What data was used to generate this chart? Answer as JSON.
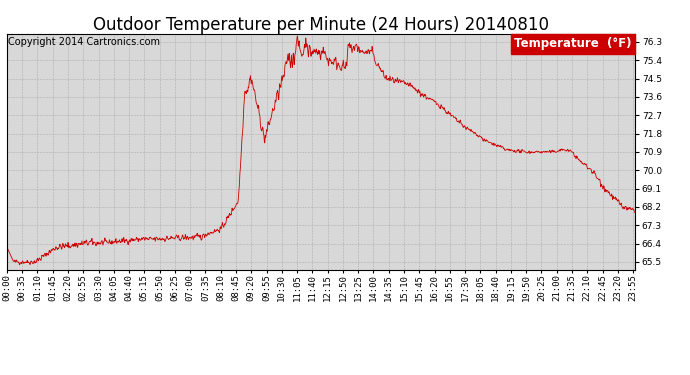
{
  "title": "Outdoor Temperature per Minute (24 Hours) 20140810",
  "copyright": "Copyright 2014 Cartronics.com",
  "legend_label": "Temperature  (°F)",
  "line_color": "#cc0000",
  "background_color": "#ffffff",
  "plot_bg_color": "#d8d8d8",
  "grid_color": "#aaaaaa",
  "yticks": [
    65.5,
    66.4,
    67.3,
    68.2,
    69.1,
    70.0,
    70.9,
    71.8,
    72.7,
    73.6,
    74.5,
    75.4,
    76.3
  ],
  "ylim": [
    65.1,
    76.7
  ],
  "xtick_labels": [
    "00:00",
    "00:35",
    "01:10",
    "01:45",
    "02:20",
    "02:55",
    "03:30",
    "04:05",
    "04:40",
    "05:15",
    "05:50",
    "06:25",
    "07:00",
    "07:35",
    "08:10",
    "08:45",
    "09:20",
    "09:55",
    "10:30",
    "11:05",
    "11:40",
    "12:15",
    "12:50",
    "13:25",
    "14:00",
    "14:35",
    "15:10",
    "15:45",
    "16:20",
    "16:55",
    "17:30",
    "18:05",
    "18:40",
    "19:15",
    "19:50",
    "20:25",
    "21:00",
    "21:35",
    "22:10",
    "22:45",
    "23:20",
    "23:55"
  ],
  "title_fontsize": 12,
  "copyright_fontsize": 7,
  "tick_fontsize": 6.5,
  "legend_fontsize": 8.5
}
